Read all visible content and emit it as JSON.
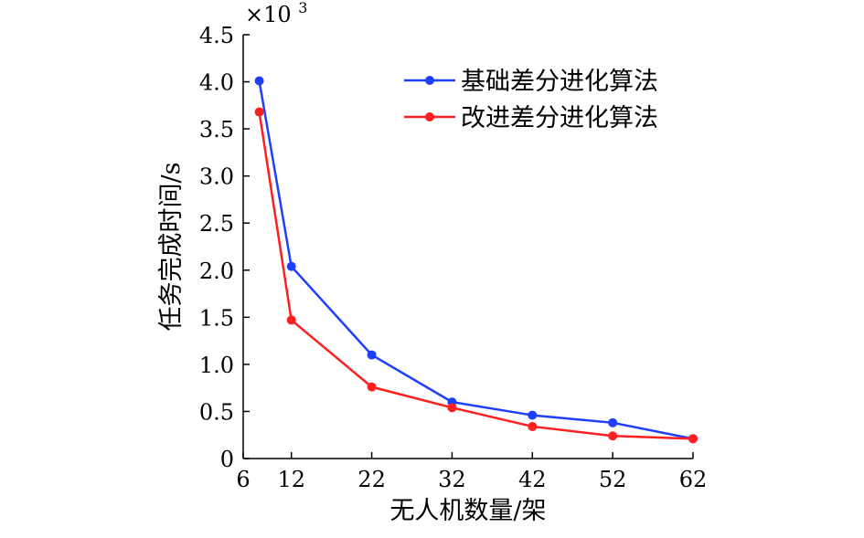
{
  "chart_data": {
    "type": "line",
    "x": [
      8,
      12,
      22,
      32,
      42,
      52,
      62
    ],
    "xticks": [
      6,
      12,
      22,
      32,
      42,
      52,
      62
    ],
    "xtick_labels": [
      "6",
      "12",
      "22",
      "32",
      "42",
      "52",
      "62"
    ],
    "yticks": [
      0,
      0.5,
      1.0,
      1.5,
      2.0,
      2.5,
      3.0,
      3.5,
      4.0,
      4.5
    ],
    "ytick_labels": [
      "0",
      "0.5",
      "1.0",
      "1.5",
      "2.0",
      "2.5",
      "3.0",
      "3.5",
      "4.0",
      "4.5"
    ],
    "xlim": [
      6,
      62
    ],
    "ylim": [
      0,
      4.5
    ],
    "xlabel": "无人机数量/架",
    "ylabel": "任务完成时间/s",
    "y_multiplier": "×10",
    "y_multiplier_exp": "3",
    "legend_position": "top-right",
    "grid": false,
    "series": [
      {
        "name": "基础差分进化算法",
        "color": "#1f3fff",
        "values": [
          4.01,
          2.04,
          1.1,
          0.6,
          0.46,
          0.38,
          0.21
        ]
      },
      {
        "name": "改进差分进化算法",
        "color": "#ff1f1f",
        "values": [
          3.68,
          1.47,
          0.76,
          0.54,
          0.34,
          0.24,
          0.21
        ]
      }
    ]
  }
}
